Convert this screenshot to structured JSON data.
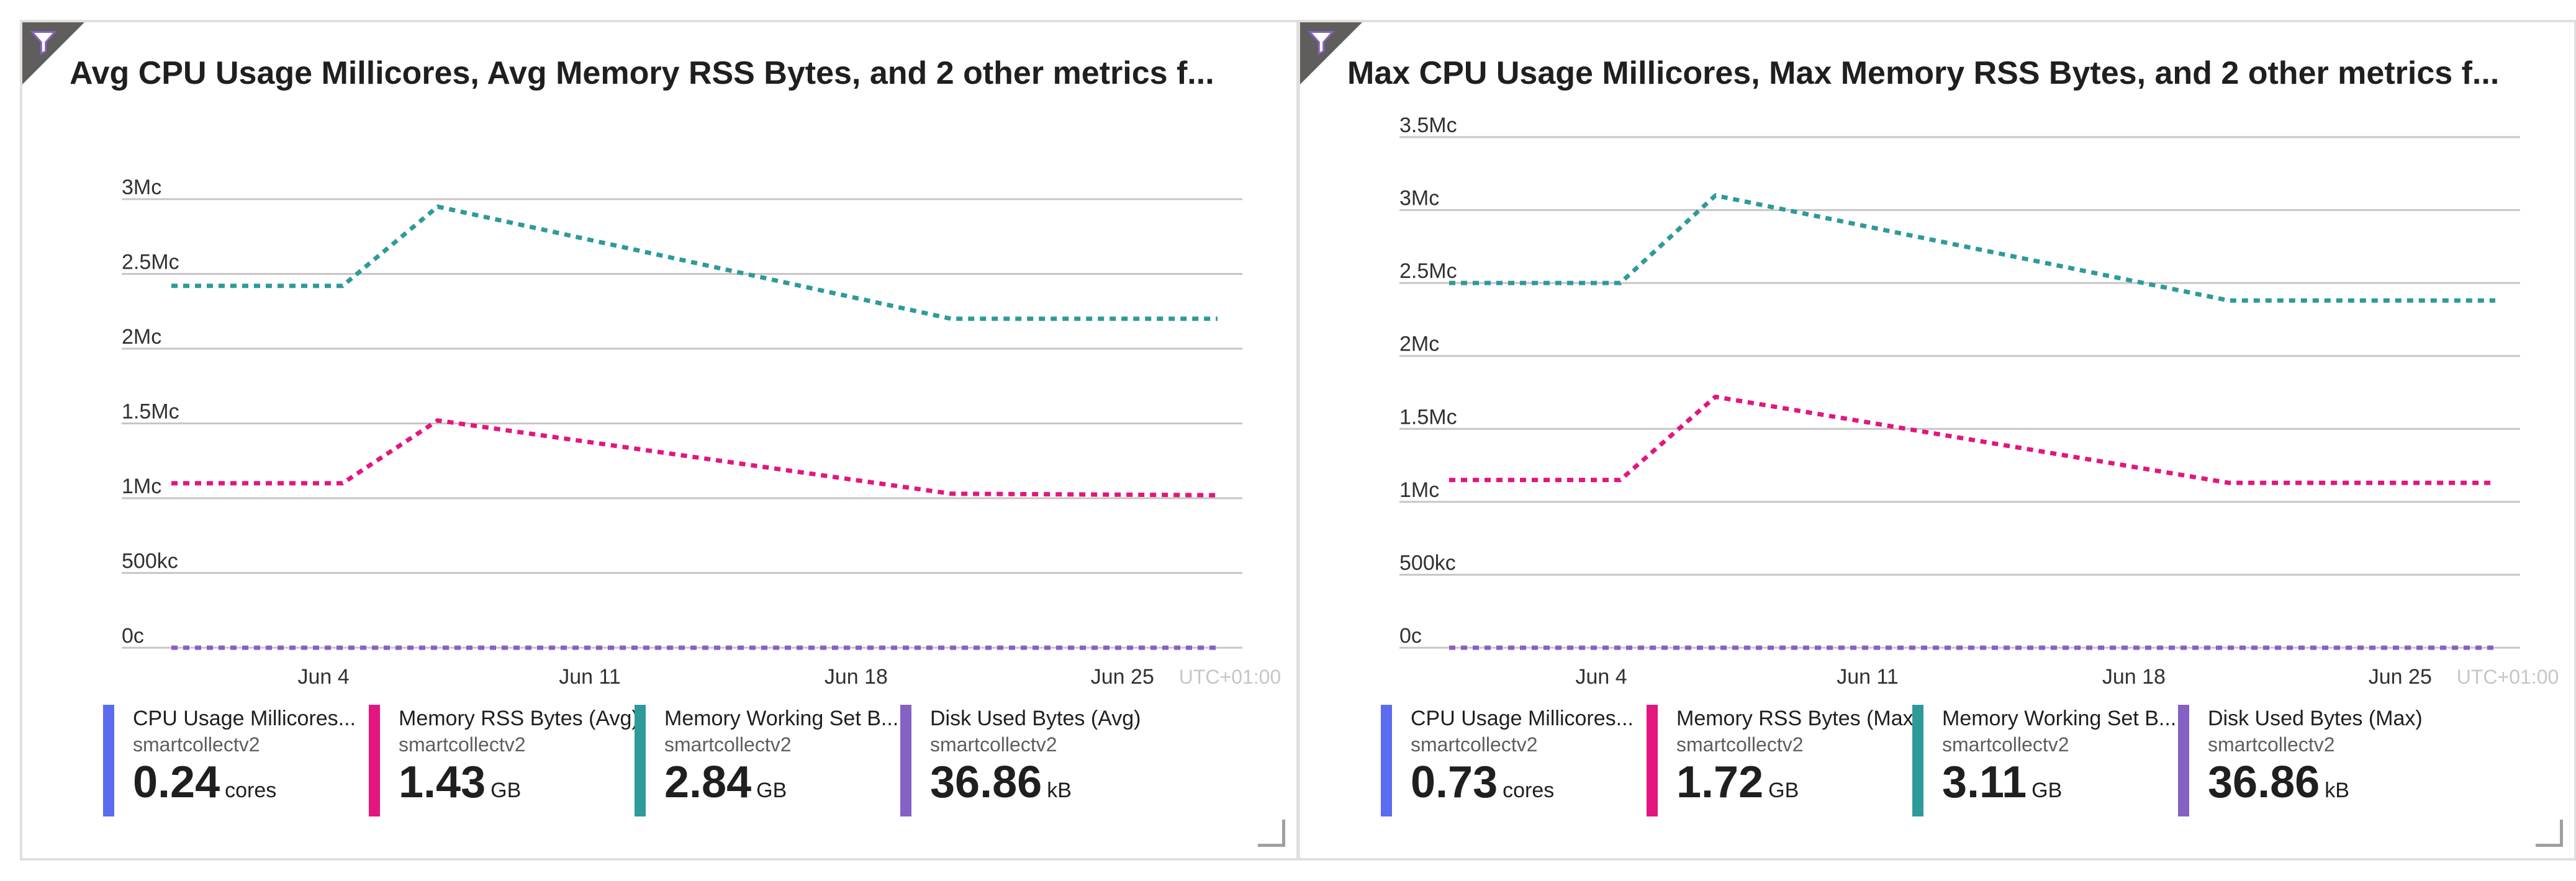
{
  "colors": {
    "cpu": "#5b6cf0",
    "memory_rss": "#e3157f",
    "memory_working_set": "#2e9a9a",
    "disk": "#8661c5",
    "grid": "#c8c6c4",
    "tick": "#323130",
    "timezone": "#c8c6c4"
  },
  "tiles": [
    {
      "title": "Avg CPU Usage Millicores, Avg Memory RSS Bytes, and 2 other metrics f...",
      "legend": [
        {
          "name": "CPU Usage Millicores...",
          "source": "smartcollectv2",
          "value": "0.24",
          "unit": "cores",
          "color_key": "cpu"
        },
        {
          "name": "Memory RSS Bytes (Avg)",
          "source": "smartcollectv2",
          "value": "1.43",
          "unit": "GB",
          "color_key": "memory_rss"
        },
        {
          "name": "Memory Working Set B...",
          "source": "smartcollectv2",
          "value": "2.84",
          "unit": "GB",
          "color_key": "memory_working_set"
        },
        {
          "name": "Disk Used Bytes (Avg)",
          "source": "smartcollectv2",
          "value": "36.86",
          "unit": "kB",
          "color_key": "disk"
        }
      ]
    },
    {
      "title": "Max CPU Usage Millicores, Max Memory RSS Bytes, and 2 other metrics f...",
      "legend": [
        {
          "name": "CPU Usage Millicores...",
          "source": "smartcollectv2",
          "value": "0.73",
          "unit": "cores",
          "color_key": "cpu"
        },
        {
          "name": "Memory RSS Bytes (Max)",
          "source": "smartcollectv2",
          "value": "1.72",
          "unit": "GB",
          "color_key": "memory_rss"
        },
        {
          "name": "Memory Working Set B...",
          "source": "smartcollectv2",
          "value": "3.11",
          "unit": "GB",
          "color_key": "memory_working_set"
        },
        {
          "name": "Disk Used Bytes (Max)",
          "source": "smartcollectv2",
          "value": "36.86",
          "unit": "kB",
          "color_key": "disk"
        }
      ]
    }
  ],
  "chart_data": [
    {
      "type": "line",
      "title": "Avg CPU Usage Millicores, Avg Memory RSS Bytes, and 2 other metrics f...",
      "x": [
        0,
        4.5,
        9,
        27.5
      ],
      "x_label_days": [
        4,
        11,
        18,
        25
      ],
      "xlim": [
        0,
        27.5
      ],
      "xtick_labels": [
        "Jun 4",
        "Jun 11",
        "Jun 18",
        "Jun 25"
      ],
      "timezone_label": "UTC+01:00",
      "ylim": [
        0,
        3000000
      ],
      "yticks": [
        0,
        500000,
        1000000,
        1500000,
        2000000,
        2500000,
        3000000
      ],
      "ytick_labels": [
        "0c",
        "500kc",
        "1Mc",
        "1.5Mc",
        "2Mc",
        "2.5Mc",
        "3Mc"
      ],
      "series": [
        {
          "name": "CPU Usage Millicores...",
          "color_key": "cpu",
          "x": [
            0,
            27.5
          ],
          "values": [
            0,
            0
          ]
        },
        {
          "name": "Memory RSS Bytes (Avg)",
          "color_key": "memory_rss",
          "x": [
            0,
            4.5,
            7,
            20.5,
            27.5
          ],
          "values": [
            1100000,
            1100000,
            1520000,
            1030000,
            1020000
          ]
        },
        {
          "name": "Memory Working Set B...",
          "color_key": "memory_working_set",
          "x": [
            0,
            4.5,
            7,
            20.5,
            27.5
          ],
          "values": [
            2420000,
            2420000,
            2950000,
            2200000,
            2200000
          ]
        },
        {
          "name": "Disk Used Bytes (Avg)",
          "color_key": "disk",
          "x": [
            0,
            27.5
          ],
          "values": [
            0,
            0
          ]
        }
      ]
    },
    {
      "type": "line",
      "title": "Max CPU Usage Millicores, Max Memory RSS Bytes, and 2 other metrics f...",
      "x_label_days": [
        4,
        11,
        18,
        25
      ],
      "xlim": [
        0,
        27.5
      ],
      "xtick_labels": [
        "Jun 4",
        "Jun 11",
        "Jun 18",
        "Jun 25"
      ],
      "timezone_label": "UTC+01:00",
      "ylim": [
        0,
        3500000
      ],
      "yticks": [
        0,
        500000,
        1000000,
        1500000,
        2000000,
        2500000,
        3000000,
        3500000
      ],
      "ytick_labels": [
        "0c",
        "500kc",
        "1Mc",
        "1.5Mc",
        "2Mc",
        "2.5Mc",
        "3Mc",
        "3.5Mc"
      ],
      "series": [
        {
          "name": "CPU Usage Millicores...",
          "color_key": "cpu",
          "x": [
            0,
            27.5
          ],
          "values": [
            0,
            0
          ]
        },
        {
          "name": "Memory RSS Bytes (Max)",
          "color_key": "memory_rss",
          "x": [
            0,
            4.5,
            7,
            20.5,
            27.5
          ],
          "values": [
            1150000,
            1150000,
            1720000,
            1130000,
            1130000
          ]
        },
        {
          "name": "Memory Working Set B...",
          "color_key": "memory_working_set",
          "x": [
            0,
            4.5,
            7,
            20.5,
            27.5
          ],
          "values": [
            2500000,
            2500000,
            3100000,
            2380000,
            2380000
          ]
        },
        {
          "name": "Disk Used Bytes (Max)",
          "color_key": "disk",
          "x": [
            0,
            27.5
          ],
          "values": [
            0,
            0
          ]
        }
      ]
    }
  ]
}
